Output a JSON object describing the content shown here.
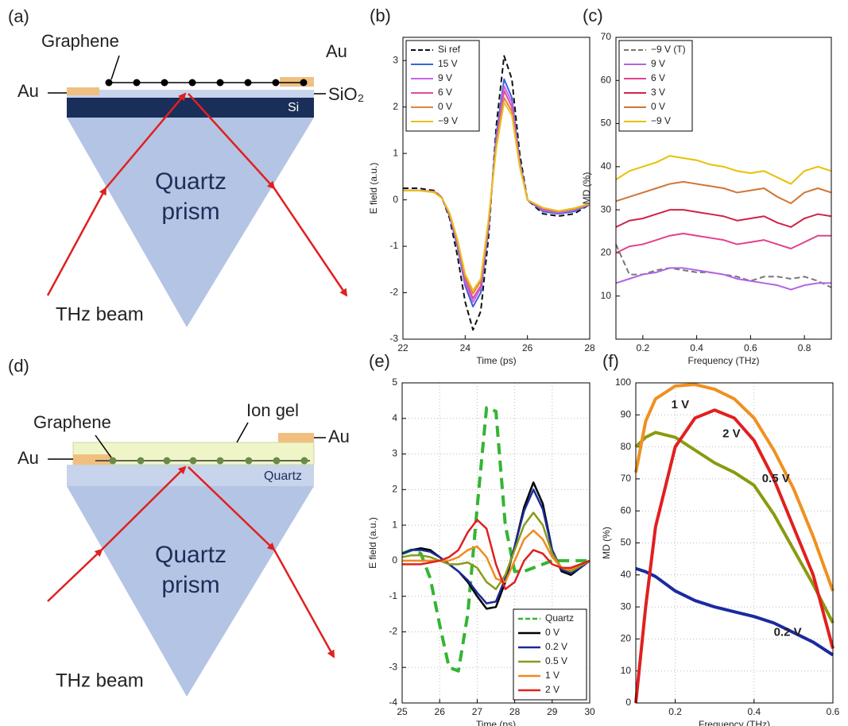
{
  "diagram_a": {
    "panel_label": "(a)",
    "graphene": "Graphene",
    "au_left": "Au",
    "au_right": "Au",
    "sio2": "SiO₂",
    "si": "Si",
    "prism": [
      "Quartz",
      "prism"
    ],
    "beam": "THz beam"
  },
  "diagram_d": {
    "panel_label": "(d)",
    "graphene": "Graphene",
    "ion_gel": "Ion gel",
    "au_left": "Au",
    "au_right": "Au",
    "substrate": "Quartz",
    "prism": [
      "Quartz",
      "prism"
    ],
    "beam": "THz beam"
  },
  "chart_data": [
    {
      "type": "line",
      "panel_label": "(b)",
      "xlabel": "Time (ps)",
      "ylabel": "E field (a.u.)",
      "x": [
        22,
        22.5,
        23,
        23.25,
        23.5,
        23.75,
        24,
        24.25,
        24.5,
        24.75,
        25,
        25.25,
        25.5,
        25.75,
        26,
        26.5,
        27,
        27.5,
        28
      ],
      "series": [
        {
          "name": "Si ref",
          "color": "#111111",
          "style": "dashed",
          "values": [
            0.25,
            0.25,
            0.2,
            0.05,
            -0.4,
            -1.2,
            -2.2,
            -2.8,
            -2.4,
            -0.8,
            1.6,
            3.1,
            2.6,
            1.0,
            0.0,
            -0.3,
            -0.35,
            -0.3,
            -0.1
          ]
        },
        {
          "name": "15 V",
          "color": "#3a64d8",
          "values": [
            0.2,
            0.2,
            0.18,
            0.05,
            -0.35,
            -1.0,
            -1.85,
            -2.3,
            -2.0,
            -0.6,
            1.4,
            2.6,
            2.2,
            0.85,
            0.0,
            -0.25,
            -0.3,
            -0.25,
            -0.1
          ]
        },
        {
          "name": "9 V",
          "color": "#c466e6",
          "values": [
            0.2,
            0.2,
            0.18,
            0.05,
            -0.33,
            -0.95,
            -1.78,
            -2.2,
            -1.9,
            -0.55,
            1.3,
            2.45,
            2.1,
            0.8,
            0.0,
            -0.22,
            -0.28,
            -0.22,
            -0.1
          ]
        },
        {
          "name": "6 V",
          "color": "#e24aa4",
          "values": [
            0.2,
            0.2,
            0.18,
            0.05,
            -0.32,
            -0.92,
            -1.72,
            -2.12,
            -1.85,
            -0.5,
            1.25,
            2.35,
            2.0,
            0.78,
            0.0,
            -0.2,
            -0.26,
            -0.2,
            -0.08
          ]
        },
        {
          "name": "0 V",
          "color": "#e0843e",
          "values": [
            0.2,
            0.2,
            0.17,
            0.04,
            -0.3,
            -0.88,
            -1.65,
            -2.02,
            -1.75,
            -0.45,
            1.18,
            2.2,
            1.9,
            0.75,
            0.0,
            -0.18,
            -0.25,
            -0.2,
            -0.08
          ]
        },
        {
          "name": "−9 V",
          "color": "#e6c21e",
          "values": [
            0.2,
            0.2,
            0.16,
            0.04,
            -0.28,
            -0.85,
            -1.6,
            -1.95,
            -1.7,
            -0.42,
            1.12,
            2.1,
            1.82,
            0.72,
            0.0,
            -0.17,
            -0.24,
            -0.18,
            -0.08
          ]
        }
      ],
      "xlim": [
        22,
        28
      ],
      "ylim": [
        -3,
        3.5
      ],
      "xticks": [
        22,
        24,
        26,
        28
      ],
      "yticks": [
        -3,
        -2,
        -1,
        0,
        1,
        2,
        3
      ],
      "grid": false,
      "legend": "upper left"
    },
    {
      "type": "line",
      "panel_label": "(c)",
      "xlabel": "Frequency (THz)",
      "ylabel": "MD (%)",
      "x": [
        0.1,
        0.15,
        0.2,
        0.25,
        0.3,
        0.35,
        0.4,
        0.45,
        0.5,
        0.55,
        0.6,
        0.65,
        0.7,
        0.75,
        0.8,
        0.85,
        0.9
      ],
      "series": [
        {
          "name": "−9 V (T)",
          "color": "#777777",
          "style": "dashed",
          "values": [
            22,
            15,
            15,
            16,
            16.5,
            16,
            15.5,
            15.5,
            15,
            14.5,
            13.5,
            14.5,
            14.5,
            14,
            14.5,
            13.5,
            12
          ]
        },
        {
          "name": "9 V",
          "color": "#b064e2",
          "values": [
            13,
            14,
            15,
            15.5,
            16.5,
            16.5,
            16,
            15.5,
            15,
            14,
            13.5,
            13,
            12.5,
            11.5,
            12.5,
            13,
            13
          ]
        },
        {
          "name": "6 V",
          "color": "#e2428c",
          "values": [
            20,
            21.5,
            22,
            23,
            24,
            24.5,
            24,
            23.5,
            23,
            22,
            22.5,
            23,
            22,
            21,
            22.5,
            24,
            24
          ]
        },
        {
          "name": "3 V",
          "color": "#d02444",
          "values": [
            26,
            27.5,
            28,
            29,
            30,
            30,
            29.5,
            29,
            28.5,
            27.5,
            28,
            28.5,
            27,
            26,
            28,
            29,
            28.5
          ]
        },
        {
          "name": "0 V",
          "color": "#d27434",
          "values": [
            32,
            33,
            34,
            35,
            36,
            36.5,
            36,
            35.5,
            35,
            34,
            34.5,
            35,
            33,
            31.5,
            34,
            35,
            34
          ]
        },
        {
          "name": "−9 V",
          "color": "#e8c000",
          "values": [
            37,
            39,
            40,
            41,
            42.5,
            42,
            41.5,
            40.5,
            40,
            39,
            38.5,
            39,
            37.5,
            36,
            39,
            40,
            39
          ]
        }
      ],
      "xlim": [
        0.1,
        0.9
      ],
      "ylim": [
        0,
        70
      ],
      "xticks": [
        0.2,
        0.4,
        0.6,
        0.8
      ],
      "yticks": [
        10,
        20,
        30,
        40,
        50,
        60,
        70
      ],
      "grid": false,
      "legend": "upper left"
    },
    {
      "type": "line",
      "panel_label": "(e)",
      "xlabel": "Time (ps)",
      "ylabel": "E field (a.u.)",
      "x": [
        25,
        25.25,
        25.5,
        25.75,
        26,
        26.25,
        26.5,
        26.75,
        27,
        27.25,
        27.5,
        27.75,
        28,
        28.25,
        28.5,
        28.75,
        29,
        29.25,
        29.5,
        29.75,
        30
      ],
      "series": [
        {
          "name": "Quartz",
          "color": "#33b533",
          "style": "dashed",
          "values": [
            0.2,
            0.3,
            0.2,
            -0.5,
            -1.8,
            -3.0,
            -3.1,
            -1.5,
            1.5,
            4.3,
            4.2,
            1.0,
            -0.3,
            -0.3,
            -0.2,
            -0.1,
            0,
            0,
            0,
            0,
            0
          ]
        },
        {
          "name": "0 V",
          "color": "#000000",
          "values": [
            0.2,
            0.3,
            0.35,
            0.3,
            0.1,
            -0.1,
            -0.3,
            -0.6,
            -1.0,
            -1.35,
            -1.3,
            -0.6,
            0.4,
            1.5,
            2.2,
            1.6,
            0.3,
            -0.3,
            -0.4,
            -0.2,
            0
          ]
        },
        {
          "name": "0.2 V",
          "color": "#1a2a9a",
          "values": [
            0.2,
            0.3,
            0.3,
            0.25,
            0.1,
            -0.1,
            -0.3,
            -0.55,
            -0.9,
            -1.2,
            -1.15,
            -0.5,
            0.4,
            1.4,
            2.0,
            1.45,
            0.3,
            -0.25,
            -0.35,
            -0.2,
            0
          ]
        },
        {
          "name": "0.5 V",
          "color": "#8a9a1a",
          "values": [
            0.1,
            0.15,
            0.15,
            0.1,
            0.0,
            -0.1,
            -0.1,
            -0.05,
            -0.2,
            -0.6,
            -0.8,
            -0.4,
            0.3,
            1.0,
            1.35,
            1.0,
            0.2,
            -0.2,
            -0.3,
            -0.15,
            0
          ]
        },
        {
          "name": "1 V",
          "color": "#f08a20",
          "values": [
            0,
            0,
            0,
            0,
            0,
            0,
            0.1,
            0.3,
            0.4,
            0.1,
            -0.5,
            -0.6,
            0,
            0.6,
            0.85,
            0.6,
            0.1,
            -0.2,
            -0.25,
            -0.1,
            0
          ]
        },
        {
          "name": "2 V",
          "color": "#e02020",
          "values": [
            -0.1,
            -0.1,
            -0.1,
            -0.05,
            0,
            0.1,
            0.3,
            0.8,
            1.15,
            0.9,
            -0.1,
            -0.8,
            -0.6,
            0,
            0.3,
            0.2,
            -0.1,
            -0.2,
            -0.2,
            -0.1,
            0
          ]
        }
      ],
      "xlim": [
        25,
        30
      ],
      "ylim": [
        -4,
        5
      ],
      "xticks": [
        25,
        26,
        27,
        28,
        29,
        30
      ],
      "yticks": [
        -4,
        -3,
        -2,
        -1,
        0,
        1,
        2,
        3,
        4,
        5
      ],
      "grid": true,
      "legend": "lower right"
    },
    {
      "type": "line",
      "panel_label": "(f)",
      "xlabel": "Frequency (THz)",
      "ylabel": "MD (%)",
      "x": [
        0.1,
        0.125,
        0.15,
        0.2,
        0.25,
        0.3,
        0.35,
        0.4,
        0.45,
        0.5,
        0.55,
        0.6
      ],
      "series": [
        {
          "name": "0.2 V",
          "color": "#1a2aa0",
          "values": [
            42,
            41,
            39.5,
            35,
            32,
            30,
            28.5,
            27,
            25,
            22,
            19,
            15
          ]
        },
        {
          "name": "0.5 V",
          "color": "#8a9a10",
          "values": [
            80,
            83,
            84.5,
            83,
            79,
            75,
            72,
            68,
            59,
            48,
            37,
            25
          ]
        },
        {
          "name": "1 V",
          "color": "#f09020",
          "values": [
            72,
            88,
            95,
            99,
            99.5,
            98,
            95,
            89,
            79,
            67,
            52,
            35
          ]
        },
        {
          "name": "2 V",
          "color": "#e02020",
          "values": [
            0,
            30,
            55,
            80,
            89,
            91.5,
            89,
            82,
            70,
            55,
            40,
            17
          ]
        }
      ],
      "xlim": [
        0.1,
        0.6
      ],
      "ylim": [
        0,
        100
      ],
      "xticks": [
        0.2,
        0.4,
        0.6
      ],
      "yticks": [
        0,
        10,
        20,
        30,
        40,
        50,
        60,
        70,
        80,
        90,
        100
      ],
      "grid": true,
      "legend": "inline"
    }
  ]
}
